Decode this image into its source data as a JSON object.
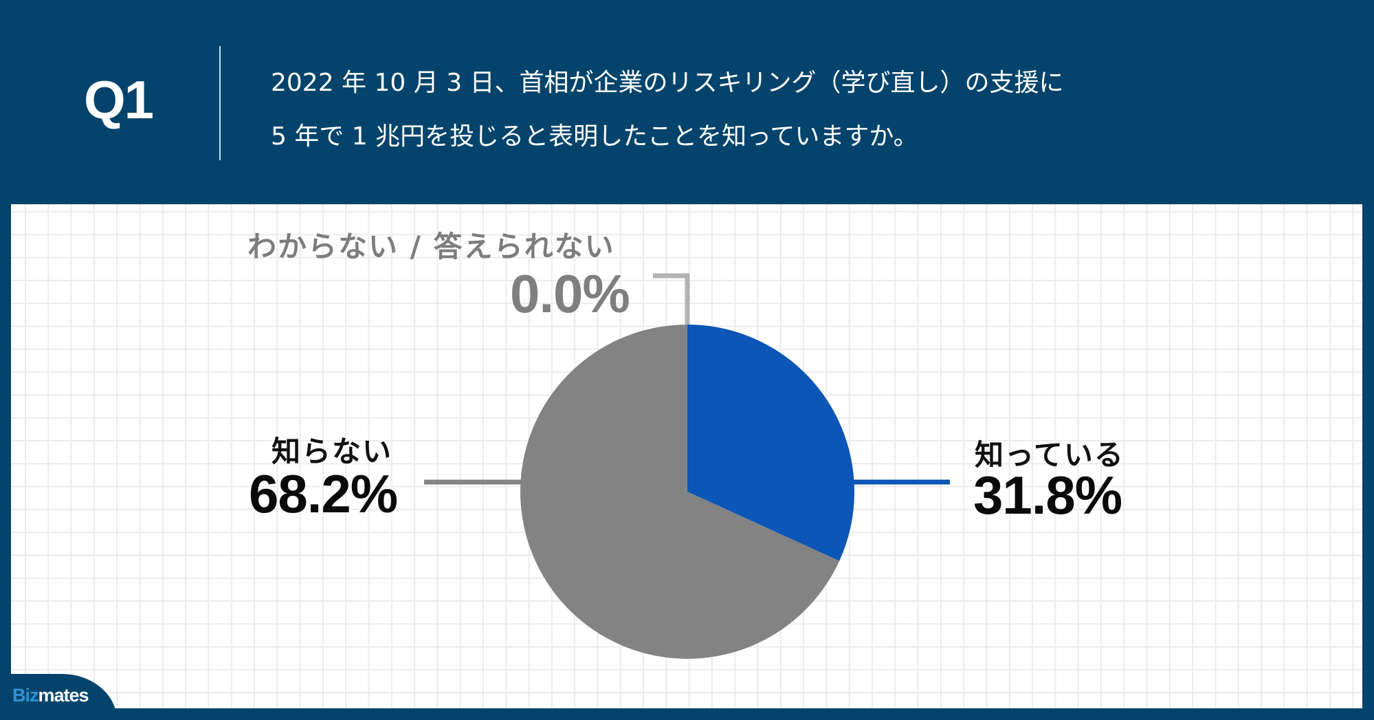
{
  "header": {
    "question_number": "Q1",
    "question_lines": [
      "2022 年 10 月 3 日、首相が企業のリスキリング（学び直し）の支援に",
      "5 年で 1 兆円を投じると表明したことを知っていますか。"
    ]
  },
  "brand": {
    "logo_part1": "Biz",
    "logo_part2": "mates"
  },
  "colors": {
    "header_bg": "#04446c",
    "known": "#0b56b6",
    "unknown": "#838383",
    "dont_know": "#b3b3b3",
    "logo_accent": "#2f92d8"
  },
  "chart_data": {
    "type": "pie",
    "title": "2022 年 10 月 3 日、首相が企業のリスキリング（学び直し）の支援に 5 年で 1 兆円を投じると表明したことを知っていますか。",
    "categories": [
      "知っている",
      "知らない",
      "わからない / 答えられない"
    ],
    "values": [
      31.8,
      68.2,
      0.0
    ],
    "value_labels": [
      "31.8%",
      "68.2%",
      "0.0%"
    ],
    "colors": [
      "#0b56b6",
      "#838383",
      "#b3b3b3"
    ],
    "start_angle": "12 o'clock, clockwise",
    "legend": "callout labels beside slices"
  },
  "labels": {
    "known": {
      "name": "知っている",
      "value": "31.8%"
    },
    "unknown": {
      "name": "知らない",
      "value": "68.2%"
    },
    "dont_know": {
      "name": "わからない / 答えられない",
      "value": "0.0%"
    }
  }
}
